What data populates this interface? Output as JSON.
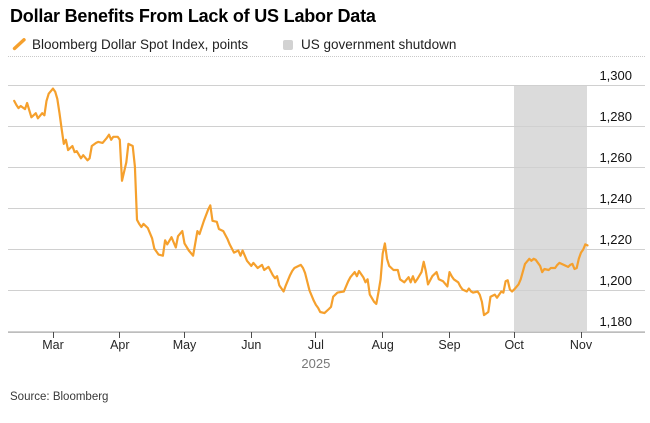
{
  "title": "Dollar Benefits From Lack of US Labor Data",
  "legend": {
    "series_label": "Bloomberg Dollar Spot Index, points",
    "band_label": "US government shutdown",
    "series_color": "#F5A02D",
    "band_color": "#DBDBDB"
  },
  "source": "Source: Bloomberg",
  "chart_data": {
    "type": "line",
    "title": "Dollar Benefits From Lack of US Labor Data",
    "ylabel": "Bloomberg Dollar Spot Index, points",
    "ylim": [
      1180,
      1300
    ],
    "grid": "horizontal",
    "legend_position": "top",
    "year_label": "2025",
    "year_anchor_date": "2025-07-01",
    "y_ticks": [
      {
        "value": 1300,
        "label": "1,300"
      },
      {
        "value": 1280,
        "label": "1,280"
      },
      {
        "value": 1260,
        "label": "1,260"
      },
      {
        "value": 1240,
        "label": "1,240"
      },
      {
        "value": 1220,
        "label": "1,220"
      },
      {
        "value": 1200,
        "label": "1,200"
      },
      {
        "value": 1180,
        "label": "1,180"
      }
    ],
    "x_ticks": [
      {
        "label": "Mar",
        "date": "2025-03-01"
      },
      {
        "label": "Apr",
        "date": "2025-04-01"
      },
      {
        "label": "May",
        "date": "2025-05-01"
      },
      {
        "label": "Jun",
        "date": "2025-06-01"
      },
      {
        "label": "Jul",
        "date": "2025-07-01"
      },
      {
        "label": "Aug",
        "date": "2025-08-01"
      },
      {
        "label": "Sep",
        "date": "2025-09-01"
      },
      {
        "label": "Oct",
        "date": "2025-10-01"
      },
      {
        "label": "Nov",
        "date": "2025-11-01"
      }
    ],
    "band": {
      "label": "US government shutdown",
      "from": "2025-10-01",
      "to": "2025-11-04",
      "color": "#DBDBDB"
    },
    "series": [
      {
        "name": "Bloomberg Dollar Spot Index, points",
        "color": "#F5A02D",
        "points": [
          [
            "2025-02-11",
            1292
          ],
          [
            "2025-02-12",
            1290
          ],
          [
            "2025-02-13",
            1288.5
          ],
          [
            "2025-02-14",
            1289.5
          ],
          [
            "2025-02-16",
            1288
          ],
          [
            "2025-02-17",
            1291
          ],
          [
            "2025-02-19",
            1284
          ],
          [
            "2025-02-21",
            1286
          ],
          [
            "2025-02-22",
            1283.5
          ],
          [
            "2025-02-24",
            1286
          ],
          [
            "2025-02-25",
            1285
          ],
          [
            "2025-02-26",
            1292
          ],
          [
            "2025-02-27",
            1295.5
          ],
          [
            "2025-03-01",
            1298
          ],
          [
            "2025-03-02",
            1296.5
          ],
          [
            "2025-03-03",
            1293
          ],
          [
            "2025-03-04",
            1286
          ],
          [
            "2025-03-05",
            1278.5
          ],
          [
            "2025-03-06",
            1271
          ],
          [
            "2025-03-07",
            1273
          ],
          [
            "2025-03-08",
            1268
          ],
          [
            "2025-03-10",
            1270
          ],
          [
            "2025-03-11",
            1267
          ],
          [
            "2025-03-12",
            1267.5
          ],
          [
            "2025-03-14",
            1264
          ],
          [
            "2025-03-15",
            1265.5
          ],
          [
            "2025-03-17",
            1263
          ],
          [
            "2025-03-18",
            1264
          ],
          [
            "2025-03-19",
            1270
          ],
          [
            "2025-03-21",
            1271.5
          ],
          [
            "2025-03-22",
            1272
          ],
          [
            "2025-03-24",
            1271.5
          ],
          [
            "2025-03-26",
            1274
          ],
          [
            "2025-03-27",
            1275.5
          ],
          [
            "2025-03-28",
            1273
          ],
          [
            "2025-03-29",
            1274.5
          ],
          [
            "2025-03-31",
            1274.5
          ],
          [
            "2025-04-01",
            1273
          ],
          [
            "2025-04-02",
            1253
          ],
          [
            "2025-04-04",
            1262
          ],
          [
            "2025-04-05",
            1271
          ],
          [
            "2025-04-07",
            1270
          ],
          [
            "2025-04-08",
            1260
          ],
          [
            "2025-04-09",
            1234
          ],
          [
            "2025-04-10",
            1232
          ],
          [
            "2025-04-11",
            1230.5
          ],
          [
            "2025-04-12",
            1232
          ],
          [
            "2025-04-14",
            1230
          ],
          [
            "2025-04-16",
            1225
          ],
          [
            "2025-04-17",
            1220
          ],
          [
            "2025-04-19",
            1217
          ],
          [
            "2025-04-21",
            1216.5
          ],
          [
            "2025-04-22",
            1224
          ],
          [
            "2025-04-23",
            1222
          ],
          [
            "2025-04-25",
            1225.5
          ],
          [
            "2025-04-27",
            1220.5
          ],
          [
            "2025-04-28",
            1226
          ],
          [
            "2025-04-30",
            1228.5
          ],
          [
            "2025-05-01",
            1222.5
          ],
          [
            "2025-05-03",
            1219
          ],
          [
            "2025-05-05",
            1216.5
          ],
          [
            "2025-05-07",
            1228.5
          ],
          [
            "2025-05-08",
            1227
          ],
          [
            "2025-05-10",
            1233.5
          ],
          [
            "2025-05-12",
            1239
          ],
          [
            "2025-05-13",
            1241
          ],
          [
            "2025-05-14",
            1233.5
          ],
          [
            "2025-05-16",
            1233
          ],
          [
            "2025-05-17",
            1229.5
          ],
          [
            "2025-05-19",
            1228.5
          ],
          [
            "2025-05-21",
            1224.5
          ],
          [
            "2025-05-22",
            1222
          ],
          [
            "2025-05-24",
            1218
          ],
          [
            "2025-05-26",
            1219
          ],
          [
            "2025-05-27",
            1216.5
          ],
          [
            "2025-05-28",
            1219
          ],
          [
            "2025-05-30",
            1214
          ],
          [
            "2025-06-01",
            1211.5
          ],
          [
            "2025-06-02",
            1213
          ],
          [
            "2025-06-04",
            1210.5
          ],
          [
            "2025-06-06",
            1212
          ],
          [
            "2025-06-07",
            1209.5
          ],
          [
            "2025-06-09",
            1211
          ],
          [
            "2025-06-11",
            1207
          ],
          [
            "2025-06-12",
            1205.5
          ],
          [
            "2025-06-13",
            1206.5
          ],
          [
            "2025-06-14",
            1202
          ],
          [
            "2025-06-16",
            1199
          ],
          [
            "2025-06-17",
            1202
          ],
          [
            "2025-06-19",
            1207
          ],
          [
            "2025-06-20",
            1209
          ],
          [
            "2025-06-21",
            1210.5
          ],
          [
            "2025-06-23",
            1211.5
          ],
          [
            "2025-06-24",
            1212
          ],
          [
            "2025-06-25",
            1210.5
          ],
          [
            "2025-06-26",
            1208
          ],
          [
            "2025-06-28",
            1199.5
          ],
          [
            "2025-06-30",
            1194.5
          ],
          [
            "2025-07-01",
            1192.5
          ],
          [
            "2025-07-02",
            1191
          ],
          [
            "2025-07-03",
            1189
          ],
          [
            "2025-07-05",
            1188.5
          ],
          [
            "2025-07-07",
            1190.5
          ],
          [
            "2025-07-08",
            1191.5
          ],
          [
            "2025-07-09",
            1196.5
          ],
          [
            "2025-07-11",
            1198.5
          ],
          [
            "2025-07-14",
            1199
          ],
          [
            "2025-07-16",
            1204
          ],
          [
            "2025-07-17",
            1206
          ],
          [
            "2025-07-19",
            1208.5
          ],
          [
            "2025-07-20",
            1206.5
          ],
          [
            "2025-07-21",
            1209
          ],
          [
            "2025-07-23",
            1206
          ],
          [
            "2025-07-24",
            1203.5
          ],
          [
            "2025-07-25",
            1205
          ],
          [
            "2025-07-26",
            1197.5
          ],
          [
            "2025-07-28",
            1194
          ],
          [
            "2025-07-29",
            1193
          ],
          [
            "2025-07-30",
            1198.5
          ],
          [
            "2025-07-31",
            1205
          ],
          [
            "2025-08-01",
            1217.5
          ],
          [
            "2025-08-02",
            1222.5
          ],
          [
            "2025-08-03",
            1215
          ],
          [
            "2025-08-04",
            1211.5
          ],
          [
            "2025-08-05",
            1210.5
          ],
          [
            "2025-08-06",
            1209.5
          ],
          [
            "2025-08-08",
            1209.5
          ],
          [
            "2025-08-09",
            1205
          ],
          [
            "2025-08-11",
            1203.5
          ],
          [
            "2025-08-13",
            1206
          ],
          [
            "2025-08-14",
            1203.5
          ],
          [
            "2025-08-15",
            1206.5
          ],
          [
            "2025-08-16",
            1203.5
          ],
          [
            "2025-08-17",
            1205
          ],
          [
            "2025-08-19",
            1208.5
          ],
          [
            "2025-08-20",
            1213.5
          ],
          [
            "2025-08-21",
            1209
          ],
          [
            "2025-08-22",
            1202.5
          ],
          [
            "2025-08-24",
            1206.5
          ],
          [
            "2025-08-26",
            1208.5
          ],
          [
            "2025-08-27",
            1205
          ],
          [
            "2025-08-29",
            1204
          ],
          [
            "2025-08-31",
            1201.5
          ],
          [
            "2025-09-01",
            1208.5
          ],
          [
            "2025-09-02",
            1206.5
          ],
          [
            "2025-09-03",
            1205
          ],
          [
            "2025-09-05",
            1203.5
          ],
          [
            "2025-09-06",
            1201.5
          ],
          [
            "2025-09-07",
            1200
          ],
          [
            "2025-09-09",
            1199
          ],
          [
            "2025-09-10",
            1200.5
          ],
          [
            "2025-09-11",
            1199
          ],
          [
            "2025-09-12",
            1198.5
          ],
          [
            "2025-09-14",
            1199
          ],
          [
            "2025-09-15",
            1197.5
          ],
          [
            "2025-09-16",
            1194
          ],
          [
            "2025-09-17",
            1187.5
          ],
          [
            "2025-09-19",
            1189
          ],
          [
            "2025-09-20",
            1196.5
          ],
          [
            "2025-09-22",
            1197.5
          ],
          [
            "2025-09-23",
            1196
          ],
          [
            "2025-09-25",
            1199
          ],
          [
            "2025-09-26",
            1198.5
          ],
          [
            "2025-09-27",
            1204
          ],
          [
            "2025-09-28",
            1204.5
          ],
          [
            "2025-09-29",
            1200
          ],
          [
            "2025-09-30",
            1199
          ],
          [
            "2025-10-01",
            1200
          ],
          [
            "2025-10-03",
            1202.5
          ],
          [
            "2025-10-04",
            1205
          ],
          [
            "2025-10-06",
            1212.5
          ],
          [
            "2025-10-08",
            1215
          ],
          [
            "2025-10-09",
            1214
          ],
          [
            "2025-10-10",
            1215
          ],
          [
            "2025-10-11",
            1214.5
          ],
          [
            "2025-10-13",
            1211.5
          ],
          [
            "2025-10-14",
            1208.5
          ],
          [
            "2025-10-15",
            1210
          ],
          [
            "2025-10-17",
            1209.5
          ],
          [
            "2025-10-18",
            1210.5
          ],
          [
            "2025-10-20",
            1210.5
          ],
          [
            "2025-10-21",
            1212
          ],
          [
            "2025-10-22",
            1213
          ],
          [
            "2025-10-23",
            1212.5
          ],
          [
            "2025-10-24",
            1212
          ],
          [
            "2025-10-26",
            1211
          ],
          [
            "2025-10-27",
            1212
          ],
          [
            "2025-10-28",
            1212.5
          ],
          [
            "2025-10-29",
            1210
          ],
          [
            "2025-10-30",
            1210.5
          ],
          [
            "2025-10-31",
            1215
          ],
          [
            "2025-11-01",
            1218
          ],
          [
            "2025-11-02",
            1219.5
          ],
          [
            "2025-11-03",
            1222
          ],
          [
            "2025-11-04",
            1221.5
          ]
        ]
      }
    ]
  }
}
